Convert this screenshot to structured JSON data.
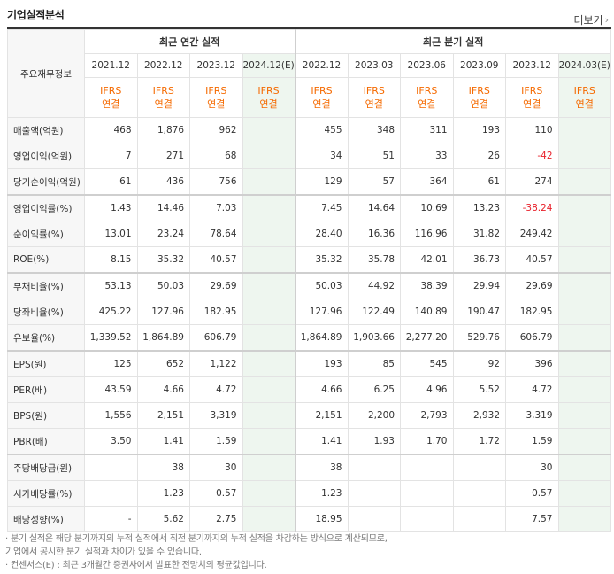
{
  "title": "기업실적분석",
  "more_label": "더보기",
  "header": {
    "row_label": "주요재무정보",
    "annual_label": "최근 연간 실적",
    "quarter_label": "최근 분기 실적",
    "periods": [
      "2021.12",
      "2022.12",
      "2023.12",
      "2024.12(E)",
      "2022.12",
      "2023.03",
      "2023.06",
      "2023.09",
      "2023.12",
      "2024.03(E)"
    ],
    "ifrs": [
      "IFRS",
      "IFRS",
      "IFRS",
      "IFRS",
      "IFRS",
      "IFRS",
      "IFRS",
      "IFRS",
      "IFRS",
      "IFRS"
    ],
    "basis": [
      "연결",
      "연결",
      "연결",
      "연결",
      "연결",
      "연결",
      "연결",
      "연결",
      "연결",
      "연결"
    ]
  },
  "rows": [
    {
      "label": "매출액(억원)",
      "values": [
        "468",
        "1,876",
        "962",
        "",
        "455",
        "348",
        "311",
        "193",
        "110",
        ""
      ]
    },
    {
      "label": "영업이익(억원)",
      "values": [
        "7",
        "271",
        "68",
        "",
        "34",
        "51",
        "33",
        "26",
        "-42",
        ""
      ]
    },
    {
      "label": "당기순이익(억원)",
      "values": [
        "61",
        "436",
        "756",
        "",
        "129",
        "57",
        "364",
        "61",
        "274",
        ""
      ]
    },
    {
      "label": "영업이익률(%)",
      "values": [
        "1.43",
        "14.46",
        "7.03",
        "",
        "7.45",
        "14.64",
        "10.69",
        "13.23",
        "-38.24",
        ""
      ]
    },
    {
      "label": "순이익률(%)",
      "values": [
        "13.01",
        "23.24",
        "78.64",
        "",
        "28.40",
        "16.36",
        "116.96",
        "31.82",
        "249.42",
        ""
      ]
    },
    {
      "label": "ROE(%)",
      "values": [
        "8.15",
        "35.32",
        "40.57",
        "",
        "35.32",
        "35.78",
        "42.01",
        "36.73",
        "40.57",
        ""
      ]
    },
    {
      "label": "부채비율(%)",
      "values": [
        "53.13",
        "50.03",
        "29.69",
        "",
        "50.03",
        "44.92",
        "38.39",
        "29.94",
        "29.69",
        ""
      ]
    },
    {
      "label": "당좌비율(%)",
      "values": [
        "425.22",
        "127.96",
        "182.95",
        "",
        "127.96",
        "122.49",
        "140.89",
        "190.47",
        "182.95",
        ""
      ]
    },
    {
      "label": "유보율(%)",
      "values": [
        "1,339.52",
        "1,864.89",
        "606.79",
        "",
        "1,864.89",
        "1,903.66",
        "2,277.20",
        "529.76",
        "606.79",
        ""
      ]
    },
    {
      "label": "EPS(원)",
      "values": [
        "125",
        "652",
        "1,122",
        "",
        "193",
        "85",
        "545",
        "92",
        "396",
        ""
      ]
    },
    {
      "label": "PER(배)",
      "values": [
        "43.59",
        "4.66",
        "4.72",
        "",
        "4.66",
        "6.25",
        "4.96",
        "5.52",
        "4.72",
        ""
      ]
    },
    {
      "label": "BPS(원)",
      "values": [
        "1,556",
        "2,151",
        "3,319",
        "",
        "2,151",
        "2,200",
        "2,793",
        "2,932",
        "3,319",
        ""
      ]
    },
    {
      "label": "PBR(배)",
      "values": [
        "3.50",
        "1.41",
        "1.59",
        "",
        "1.41",
        "1.93",
        "1.70",
        "1.72",
        "1.59",
        ""
      ]
    },
    {
      "label": "주당배당금(원)",
      "values": [
        "",
        "38",
        "30",
        "",
        "38",
        "",
        "",
        "",
        "30",
        ""
      ]
    },
    {
      "label": "시가배당률(%)",
      "values": [
        "",
        "1.23",
        "0.57",
        "",
        "1.23",
        "",
        "",
        "",
        "0.57",
        ""
      ]
    },
    {
      "label": "배당성향(%)",
      "values": [
        "-",
        "5.62",
        "2.75",
        "",
        "18.95",
        "",
        "",
        "",
        "7.57",
        ""
      ]
    }
  ],
  "notes": [
    "· 분기 실적은 해당 분기까지의 누적 실적에서 직전 분기까지의 누적 실적을 차감하는 방식으로 계산되므로,",
    "  기업에서 공시한 분기 실적과 차이가 있을 수 있습니다.",
    "· 컨센서스(E) : 최근 3개월간 증권사에서 발표한 전망치의 평균값입니다."
  ],
  "colors": {
    "ifrs": "#f56a00",
    "negative": "#e8202a",
    "estimate_bg": "#eef6ef"
  }
}
